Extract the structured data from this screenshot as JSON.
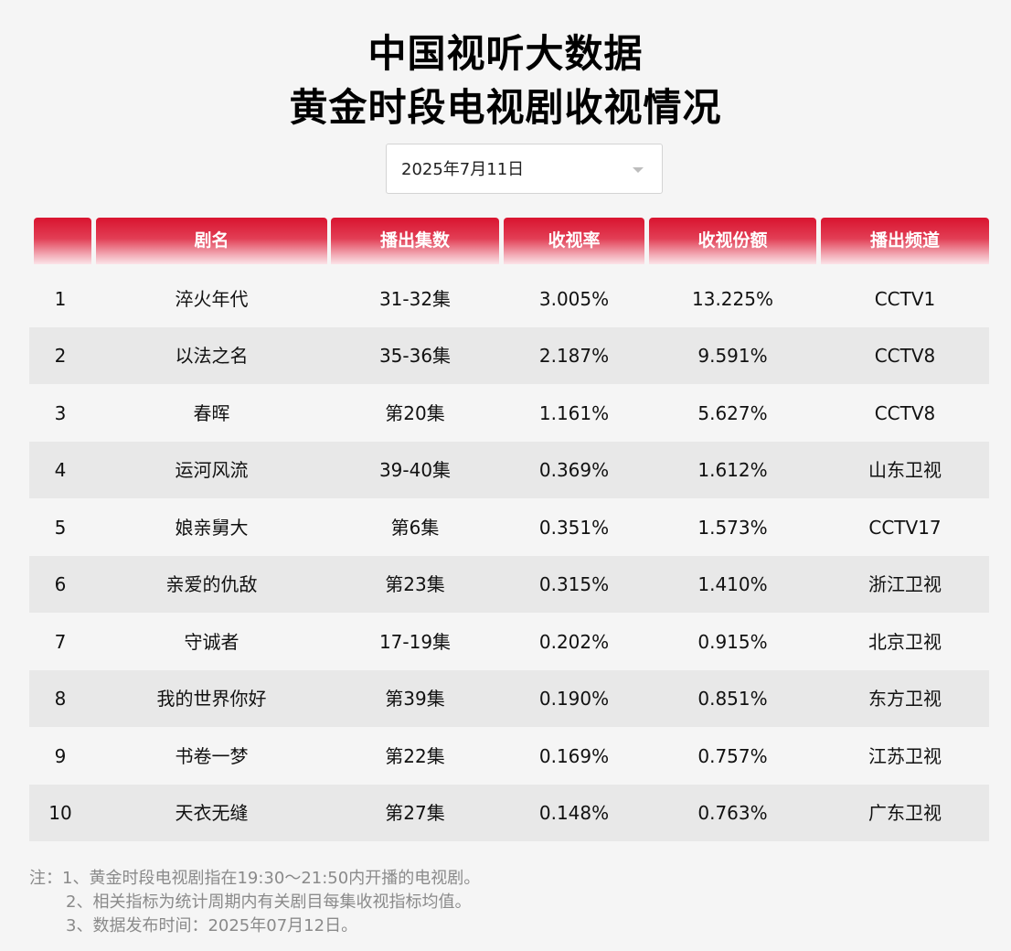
{
  "title": {
    "line1": "中国视听大数据",
    "line2": "黄金时段电视剧收视情况"
  },
  "date_select": {
    "value": "2025年7月11日",
    "caret_icon": "chevron-down-icon"
  },
  "table": {
    "headers": [
      "",
      "剧名",
      "播出集数",
      "收视率",
      "收视份额",
      "播出频道"
    ],
    "header_color": "#d9142f",
    "rows": [
      {
        "rank": "1",
        "name": "淬火年代",
        "episodes": "31-32集",
        "rating": "3.005%",
        "share": "13.225%",
        "channel": "CCTV1"
      },
      {
        "rank": "2",
        "name": "以法之名",
        "episodes": "35-36集",
        "rating": "2.187%",
        "share": "9.591%",
        "channel": "CCTV8"
      },
      {
        "rank": "3",
        "name": "春晖",
        "episodes": "第20集",
        "rating": "1.161%",
        "share": "5.627%",
        "channel": "CCTV8"
      },
      {
        "rank": "4",
        "name": "运河风流",
        "episodes": "39-40集",
        "rating": "0.369%",
        "share": "1.612%",
        "channel": "山东卫视"
      },
      {
        "rank": "5",
        "name": "娘亲舅大",
        "episodes": "第6集",
        "rating": "0.351%",
        "share": "1.573%",
        "channel": "CCTV17"
      },
      {
        "rank": "6",
        "name": "亲爱的仇敌",
        "episodes": "第23集",
        "rating": "0.315%",
        "share": "1.410%",
        "channel": "浙江卫视"
      },
      {
        "rank": "7",
        "name": "守诚者",
        "episodes": "17-19集",
        "rating": "0.202%",
        "share": "0.915%",
        "channel": "北京卫视"
      },
      {
        "rank": "8",
        "name": "我的世界你好",
        "episodes": "第39集",
        "rating": "0.190%",
        "share": "0.851%",
        "channel": "东方卫视"
      },
      {
        "rank": "9",
        "name": "书卷一梦",
        "episodes": "第22集",
        "rating": "0.169%",
        "share": "0.757%",
        "channel": "江苏卫视"
      },
      {
        "rank": "10",
        "name": "天衣无缝",
        "episodes": "第27集",
        "rating": "0.148%",
        "share": "0.763%",
        "channel": "广东卫视"
      }
    ]
  },
  "notes": {
    "line1": "注：1、黄金时段电视剧指在19:30～21:50内开播的电视剧。",
    "line2": "2、相关指标为统计周期内有关剧目每集收视指标均值。",
    "line3": "3、数据发布时间：2025年07月12日。"
  }
}
